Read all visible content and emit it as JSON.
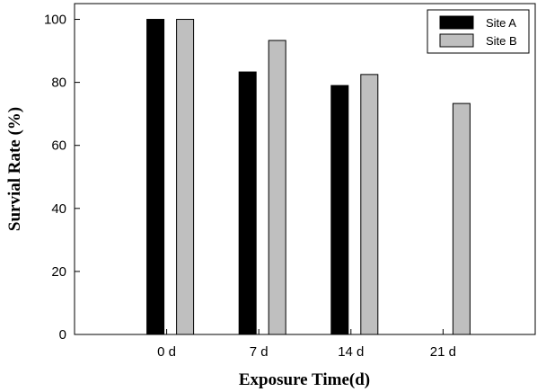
{
  "chart_data": {
    "type": "bar",
    "title": "",
    "xlabel": "Exposure Time(d)",
    "ylabel": "Survial Rate (%)",
    "categories": [
      "0 d",
      "7 d",
      "14 d",
      "21 d"
    ],
    "series": [
      {
        "name": "Site A",
        "values": [
          100,
          83.3,
          79,
          null
        ],
        "color": "#000000"
      },
      {
        "name": "Site B",
        "values": [
          100,
          93.3,
          82.5,
          73.3
        ],
        "color": "#bfbfbf"
      }
    ],
    "ylim": [
      0,
      105
    ],
    "yticks": [
      "0",
      "20",
      "40",
      "60",
      "80",
      "100"
    ],
    "grid": false,
    "legend_position": "top-right"
  }
}
